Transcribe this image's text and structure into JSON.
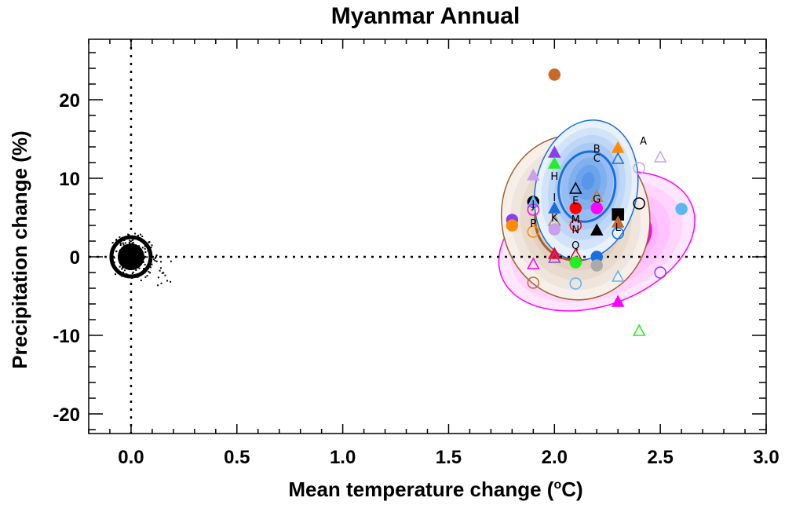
{
  "chart_data": {
    "type": "scatter",
    "title": "Myanmar Annual",
    "xlabel": "Mean temperature change (°C)",
    "xlabel_parts": {
      "pre": "Mean temperature change (",
      "sup": "o",
      "post": "C)"
    },
    "ylabel": "Precipitation change (%)",
    "xlim": [
      -0.2,
      3.0
    ],
    "ylim": [
      -22.5,
      27.7
    ],
    "x_ticks": [
      0.0,
      0.5,
      1.0,
      1.5,
      2.0,
      2.5,
      3.0
    ],
    "x_tick_labels": [
      "0.0",
      "0.5",
      "1.0",
      "1.5",
      "2.0",
      "2.5",
      "3.0"
    ],
    "y_ticks": [
      -20,
      -10,
      0,
      10,
      20
    ],
    "y_tick_labels": [
      "-20",
      "-10",
      "0",
      "10",
      "20"
    ],
    "reference_lines": {
      "x": 0,
      "y": 0,
      "style": "dotted"
    },
    "natural_variability": {
      "center": [
        0,
        0
      ],
      "color": "#000000"
    },
    "density_contours": [
      {
        "name": "brown",
        "color": "#a0602a",
        "center": [
          2.1,
          5.0
        ],
        "rx": 0.35,
        "ry": 10.5,
        "rotation": -8
      },
      {
        "name": "magenta",
        "color": "#ff00ff",
        "center": [
          2.2,
          2.0
        ],
        "rx": 0.48,
        "ry": 8.2,
        "rotation": -20
      },
      {
        "name": "blue",
        "color": "#1a6fe0",
        "center": [
          2.15,
          8.5
        ],
        "rx": 0.24,
        "ry": 9.0,
        "rotation": 12
      }
    ],
    "points": [
      {
        "x": 2.0,
        "y": 23.2,
        "marker": "circle",
        "filled": true,
        "color": "#c8692a"
      },
      {
        "x": 2.0,
        "y": 13.2,
        "marker": "triangle",
        "filled": true,
        "color": "#8a3cf0"
      },
      {
        "x": 2.0,
        "y": 11.8,
        "marker": "triangle",
        "filled": true,
        "color": "#22ee22"
      },
      {
        "x": 1.9,
        "y": 10.3,
        "marker": "triangle",
        "filled": true,
        "color": "#c9a0f0"
      },
      {
        "x": 2.3,
        "y": 13.8,
        "marker": "triangle",
        "filled": true,
        "color": "#ff8c00"
      },
      {
        "x": 2.3,
        "y": 12.4,
        "marker": "triangle",
        "filled": false,
        "color": "#1a6fe0"
      },
      {
        "x": 2.5,
        "y": 12.6,
        "marker": "triangle",
        "filled": false,
        "color": "#c9a0f0"
      },
      {
        "x": 2.4,
        "y": 11.3,
        "marker": "circle",
        "filled": false,
        "color": "#c9a0f0"
      },
      {
        "x": 2.1,
        "y": 8.6,
        "marker": "triangle",
        "filled": false,
        "color": "#000000"
      },
      {
        "x": 2.2,
        "y": 7.6,
        "marker": "triangle",
        "filled": false,
        "color": "#d0782a"
      },
      {
        "x": 1.9,
        "y": 7.0,
        "marker": "circle",
        "filled": true,
        "color": "#000000"
      },
      {
        "x": 1.9,
        "y": 6.9,
        "marker": "triangle",
        "filled": true,
        "color": "#5ab8f0"
      },
      {
        "x": 1.9,
        "y": 6.0,
        "marker": "circle",
        "filled": false,
        "color": "#ff00ff"
      },
      {
        "x": 2.0,
        "y": 6.1,
        "marker": "triangle",
        "filled": true,
        "color": "#1a6fe0"
      },
      {
        "x": 2.1,
        "y": 6.2,
        "marker": "circle",
        "filled": true,
        "color": "#ff0000"
      },
      {
        "x": 2.2,
        "y": 6.2,
        "marker": "circle",
        "filled": true,
        "color": "#ff00ff"
      },
      {
        "x": 2.4,
        "y": 6.8,
        "marker": "circle",
        "filled": false,
        "color": "#000000"
      },
      {
        "x": 2.6,
        "y": 6.1,
        "marker": "circle",
        "filled": true,
        "color": "#5ab8f0"
      },
      {
        "x": 2.3,
        "y": 5.4,
        "marker": "square",
        "filled": true,
        "color": "#000000"
      },
      {
        "x": 2.3,
        "y": 4.3,
        "marker": "triangle",
        "filled": true,
        "color": "#c8692a"
      },
      {
        "x": 1.8,
        "y": 4.7,
        "marker": "circle",
        "filled": true,
        "color": "#8a3cf0"
      },
      {
        "x": 1.8,
        "y": 4.0,
        "marker": "circle",
        "filled": true,
        "color": "#ff8c00"
      },
      {
        "x": 2.0,
        "y": 4.5,
        "marker": "triangle",
        "filled": false,
        "color": "#d0782a"
      },
      {
        "x": 2.1,
        "y": 4.0,
        "marker": "circle",
        "filled": false,
        "color": "#ff0000"
      },
      {
        "x": 2.0,
        "y": 3.5,
        "marker": "circle",
        "filled": true,
        "color": "#c9a0f0"
      },
      {
        "x": 1.9,
        "y": 3.2,
        "marker": "circle",
        "filled": false,
        "color": "#ff8c00"
      },
      {
        "x": 2.2,
        "y": 3.3,
        "marker": "triangle",
        "filled": true,
        "color": "#000000"
      },
      {
        "x": 2.3,
        "y": 3.0,
        "marker": "circle",
        "filled": false,
        "color": "#22ee22"
      },
      {
        "x": 2.3,
        "y": 3.0,
        "marker": "circle",
        "filled": false,
        "color": "#1a6fe0"
      },
      {
        "x": 2.0,
        "y": 0.3,
        "marker": "triangle",
        "filled": true,
        "color": "#ff0000"
      },
      {
        "x": 2.0,
        "y": -0.2,
        "marker": "triangle",
        "filled": false,
        "color": "#8a3cf0"
      },
      {
        "x": 2.1,
        "y": 0.2,
        "marker": "triangle",
        "filled": false,
        "color": "#ff0000"
      },
      {
        "x": 2.1,
        "y": -0.7,
        "marker": "circle",
        "filled": true,
        "color": "#22ee22"
      },
      {
        "x": 2.2,
        "y": 0.0,
        "marker": "circle",
        "filled": true,
        "color": "#1a6fe0"
      },
      {
        "x": 2.2,
        "y": -1.1,
        "marker": "circle",
        "filled": true,
        "color": "#aaaaaa"
      },
      {
        "x": 1.9,
        "y": -1.0,
        "marker": "triangle",
        "filled": false,
        "color": "#ff00ff"
      },
      {
        "x": 1.9,
        "y": -3.3,
        "marker": "circle",
        "filled": false,
        "color": "#c8692a"
      },
      {
        "x": 2.1,
        "y": -3.4,
        "marker": "circle",
        "filled": false,
        "color": "#5ab8f0"
      },
      {
        "x": 2.3,
        "y": -2.6,
        "marker": "triangle",
        "filled": false,
        "color": "#5ab8f0"
      },
      {
        "x": 2.5,
        "y": -2.0,
        "marker": "circle",
        "filled": false,
        "color": "#8a3cf0"
      },
      {
        "x": 2.3,
        "y": -5.8,
        "marker": "triangle",
        "filled": true,
        "color": "#ff00ff"
      },
      {
        "x": 2.4,
        "y": -9.5,
        "marker": "triangle",
        "filled": false,
        "color": "#22ee22"
      }
    ],
    "letter_labels": [
      {
        "text": "A",
        "x": 2.42,
        "y": 14.8
      },
      {
        "text": "B",
        "x": 2.2,
        "y": 13.8
      },
      {
        "text": "C",
        "x": 2.2,
        "y": 12.6
      },
      {
        "text": "H",
        "x": 2.0,
        "y": 10.3
      },
      {
        "text": "I",
        "x": 2.0,
        "y": 7.6
      },
      {
        "text": "E",
        "x": 2.1,
        "y": 7.2
      },
      {
        "text": "J",
        "x": 1.9,
        "y": 6.7
      },
      {
        "text": "K",
        "x": 2.0,
        "y": 5.0
      },
      {
        "text": "M",
        "x": 2.1,
        "y": 4.8
      },
      {
        "text": "N",
        "x": 2.1,
        "y": 3.5
      },
      {
        "text": "P",
        "x": 1.9,
        "y": 4.3
      },
      {
        "text": "L",
        "x": 2.3,
        "y": 3.8
      },
      {
        "text": "Q",
        "x": 2.1,
        "y": 1.5
      },
      {
        "text": "G",
        "x": 2.2,
        "y": 7.4
      }
    ]
  }
}
